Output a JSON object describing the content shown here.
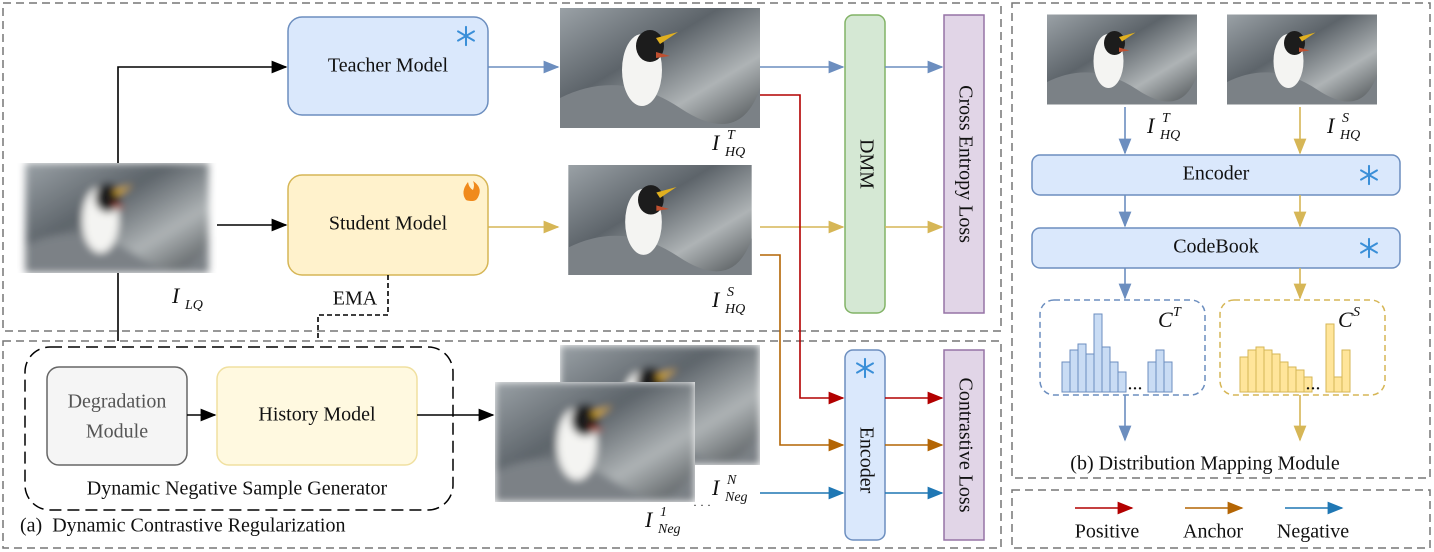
{
  "panel_a": {
    "caption": "(a)  Dynamic Contrastive Regularization",
    "teacher_model": "Teacher Model",
    "student_model": "Student Model",
    "dmm": "DMM",
    "cross_entropy_loss": "Cross Entropy Loss",
    "encoder": "Encoder",
    "contrastive_loss": "Contrastive Loss",
    "ema": "EMA",
    "generator": {
      "title": "Dynamic Negative Sample Generator",
      "degradation_module": [
        "Degradation",
        "Module"
      ],
      "history_model": "History Model"
    },
    "labels": {
      "lq": {
        "base": "I",
        "sub": "LQ"
      },
      "hq_teacher": {
        "base": "I",
        "sup": "T",
        "sub": "HQ"
      },
      "hq_student": {
        "base": "I",
        "sup": "S",
        "sub": "HQ"
      },
      "neg_n": {
        "base": "I",
        "sup": "N",
        "sub": "Neg"
      },
      "neg_1": {
        "base": "I",
        "sup": "1",
        "sub": "Neg"
      },
      "ellipsis": "· · ·"
    }
  },
  "panel_b": {
    "caption": "(b) Distribution Mapping Module",
    "encoder": "Encoder",
    "codebook": "CodeBook",
    "labels": {
      "hq_teacher": {
        "base": "I",
        "sup": "T",
        "sub": "HQ"
      },
      "hq_student": {
        "base": "I",
        "sup": "S",
        "sub": "HQ"
      },
      "c_teacher": {
        "base": "C",
        "sup": "T"
      },
      "c_student": {
        "base": "C",
        "sup": "S"
      }
    },
    "ellipsis": "..."
  },
  "legend": {
    "positive": "Positive",
    "anchor": "Anchor",
    "negative": "Negative"
  }
}
